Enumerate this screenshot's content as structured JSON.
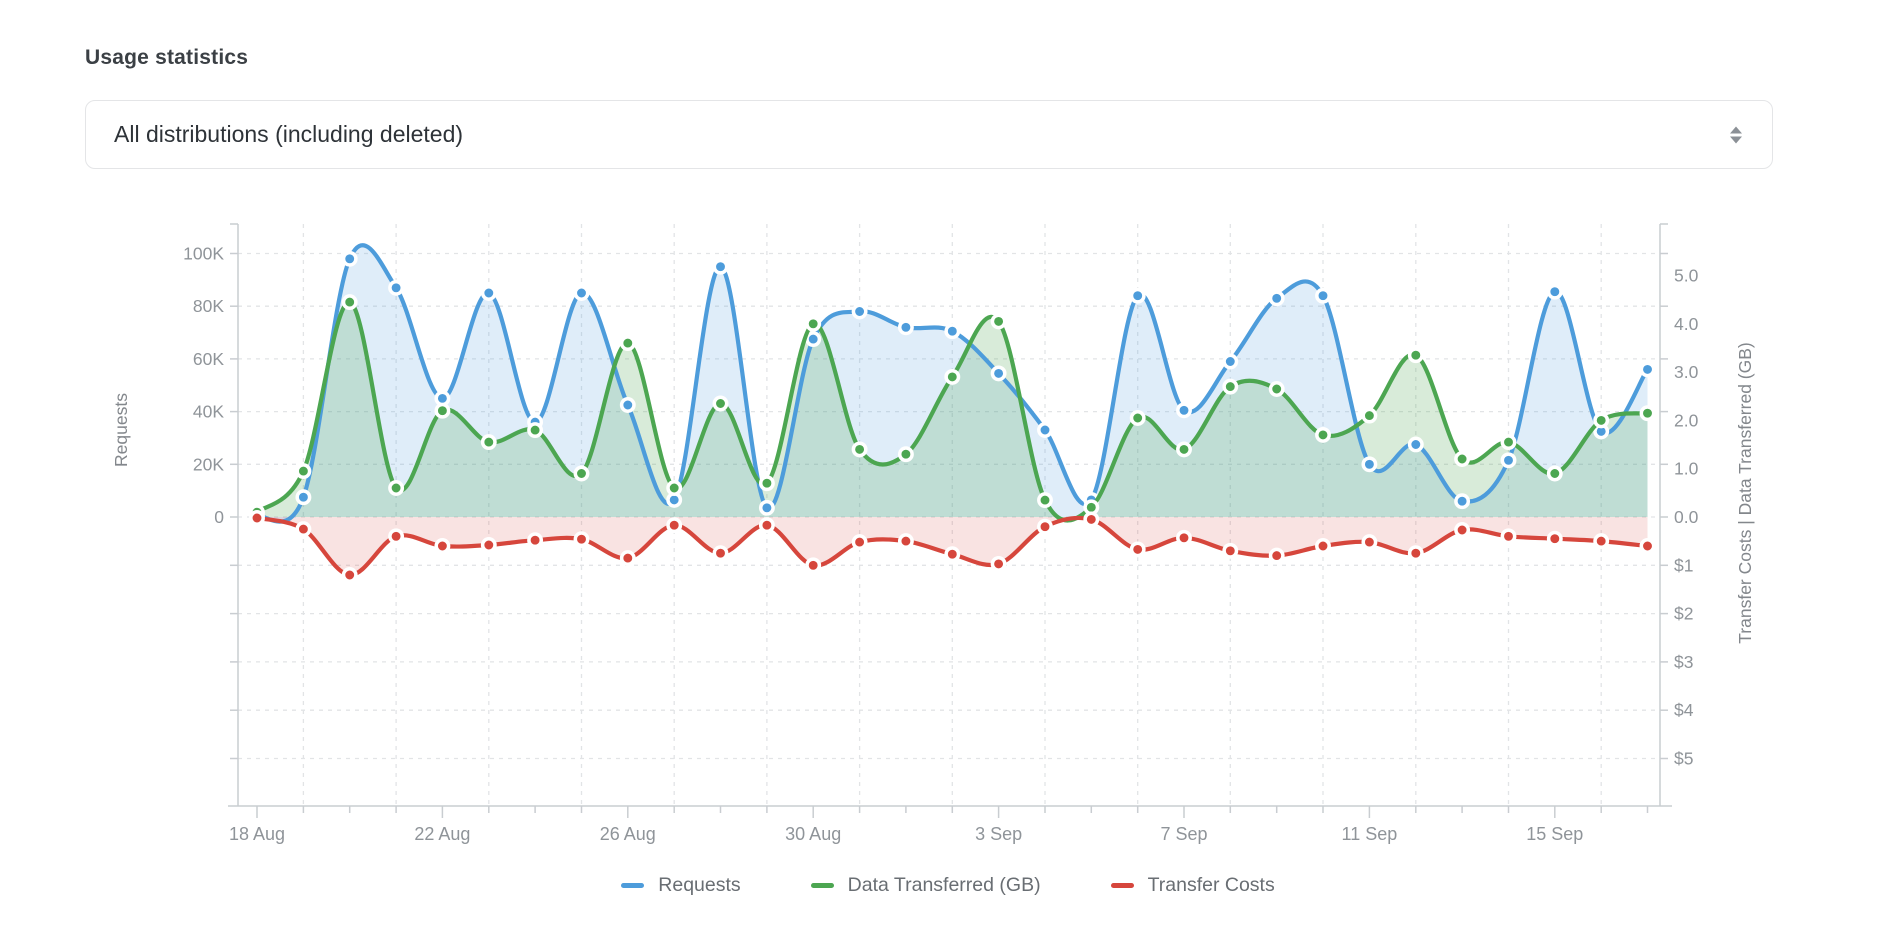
{
  "title": "Usage statistics",
  "filter": {
    "value": "All distributions (including deleted)"
  },
  "chart_data": {
    "type": "line",
    "x_categories": [
      "18 Aug",
      "19 Aug",
      "20 Aug",
      "21 Aug",
      "22 Aug",
      "23 Aug",
      "24 Aug",
      "25 Aug",
      "26 Aug",
      "27 Aug",
      "28 Aug",
      "29 Aug",
      "30 Aug",
      "31 Aug",
      "1 Sep",
      "2 Sep",
      "3 Sep",
      "4 Sep",
      "5 Sep",
      "6 Sep",
      "7 Sep",
      "8 Sep",
      "9 Sep",
      "10 Sep",
      "11 Sep",
      "12 Sep",
      "13 Sep",
      "14 Sep",
      "15 Sep",
      "16 Sep",
      "17 Sep"
    ],
    "x_axis": {
      "tick_labels": [
        "18 Aug",
        "22 Aug",
        "26 Aug",
        "30 Aug",
        "3 Sep",
        "7 Sep",
        "11 Sep",
        "15 Sep"
      ],
      "tick_positions": [
        0,
        4,
        8,
        12,
        16,
        20,
        24,
        28
      ]
    },
    "left_axis": {
      "title": "Requests",
      "tick_labels": [
        "100K",
        "80K",
        "60K",
        "40K",
        "20K",
        "0"
      ],
      "tick_values": [
        100000,
        80000,
        60000,
        40000,
        20000,
        0
      ],
      "range": [
        0,
        110000
      ]
    },
    "right_axis": {
      "title": "Transfer Costs | Data Transferred (GB)",
      "gb_tick_labels": [
        "5.0",
        "4.0",
        "3.0",
        "2.0",
        "1.0",
        "0.0"
      ],
      "gb_tick_values": [
        5,
        4,
        3,
        2,
        1,
        0
      ],
      "cost_tick_labels": [
        "$1",
        "$2",
        "$3",
        "$4",
        "$5"
      ],
      "cost_tick_values": [
        -1,
        -2,
        -3,
        -4,
        -5
      ],
      "range": [
        -6,
        6
      ]
    },
    "grid": true,
    "legend_position": "bottom",
    "series": [
      {
        "name": "Requests",
        "axis": "left",
        "color": "#4d9cdb",
        "values": [
          400,
          7500,
          98000,
          87000,
          45000,
          85000,
          36000,
          85000,
          42500,
          6500,
          95000,
          3500,
          67500,
          78000,
          72000,
          70500,
          54500,
          33000,
          6500,
          84000,
          40500,
          59000,
          83000,
          84000,
          20000,
          27500,
          6000,
          21500,
          85500,
          32500,
          56000
        ]
      },
      {
        "name": "Data Transferred (GB)",
        "axis": "right",
        "color": "#4ca651",
        "values": [
          0.1,
          0.95,
          4.45,
          0.6,
          2.2,
          1.55,
          1.8,
          0.9,
          3.6,
          0.6,
          2.35,
          0.7,
          4.0,
          1.4,
          1.3,
          2.9,
          4.05,
          0.35,
          0.2,
          2.05,
          1.4,
          2.7,
          2.65,
          1.7,
          2.1,
          3.35,
          1.2,
          1.55,
          0.9,
          2.0,
          2.15
        ]
      },
      {
        "name": "Transfer Costs",
        "axis": "right",
        "color": "#d6463c",
        "values": [
          -0.02,
          -0.25,
          -1.2,
          -0.4,
          -0.6,
          -0.58,
          -0.48,
          -0.46,
          -0.85,
          -0.17,
          -0.75,
          -0.17,
          -1.0,
          -0.52,
          -0.5,
          -0.77,
          -0.97,
          -0.2,
          -0.05,
          -0.67,
          -0.43,
          -0.7,
          -0.8,
          -0.6,
          -0.52,
          -0.75,
          -0.27,
          -0.4,
          -0.45,
          -0.5,
          -0.6
        ]
      }
    ]
  }
}
